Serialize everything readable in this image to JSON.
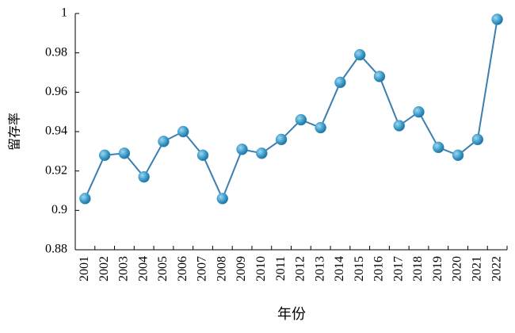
{
  "chart_data": {
    "type": "line",
    "xlabel": "年份",
    "ylabel": "留存率",
    "categories": [
      "2001",
      "2002",
      "2003",
      "2004",
      "2005",
      "2006",
      "2007",
      "2008",
      "2009",
      "2010",
      "2011",
      "2012",
      "2013",
      "2014",
      "2015",
      "2016",
      "2017",
      "2018",
      "2019",
      "2020",
      "2021",
      "2022"
    ],
    "values": [
      0.906,
      0.928,
      0.929,
      0.917,
      0.935,
      0.94,
      0.928,
      0.906,
      0.931,
      0.929,
      0.936,
      0.946,
      0.942,
      0.965,
      0.979,
      0.968,
      0.943,
      0.95,
      0.932,
      0.928,
      0.936,
      0.997
    ],
    "color": "#3b7fb0",
    "marker_color": "#3a9ac8",
    "ylim": [
      0.88,
      1
    ],
    "yticks": [
      0.88,
      0.9,
      0.92,
      0.94,
      0.96,
      0.98,
      1
    ],
    "grid": false
  }
}
